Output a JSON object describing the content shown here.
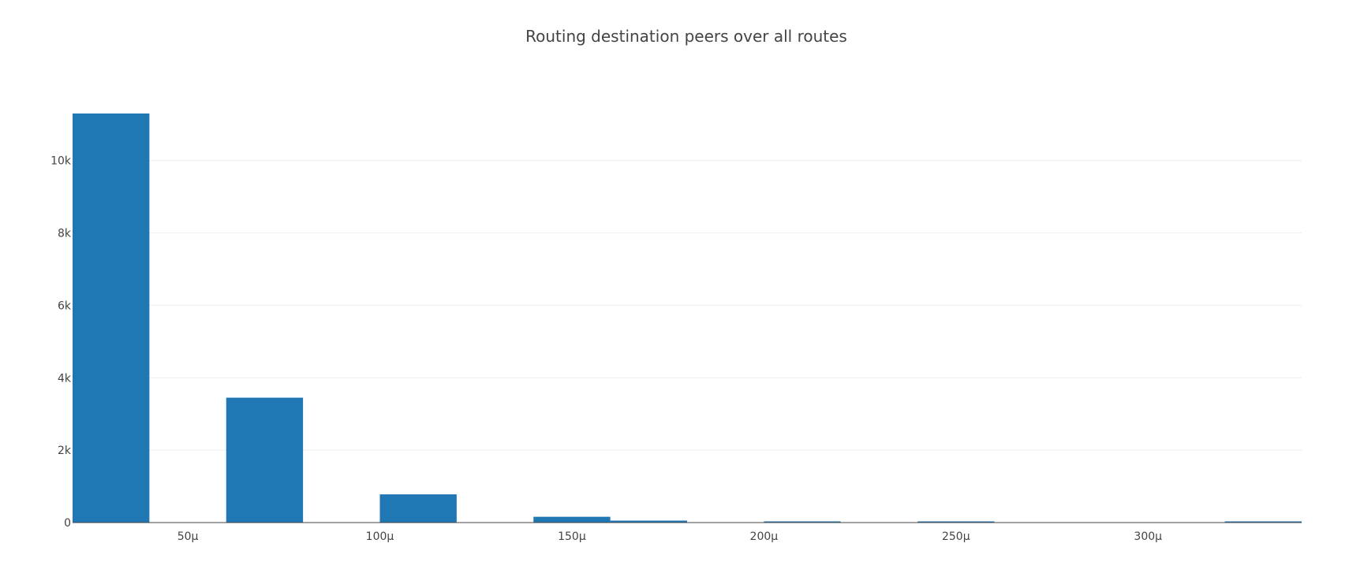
{
  "chart_data": {
    "type": "bar",
    "title": "Routing destination peers over all routes",
    "xlabel": "",
    "ylabel": "",
    "bins": [
      {
        "x0": 0,
        "x1": 20,
        "count": 11300
      },
      {
        "x0": 40,
        "x1": 60,
        "count": 3450
      },
      {
        "x0": 80,
        "x1": 100,
        "count": 780
      },
      {
        "x0": 120,
        "x1": 140,
        "count": 160
      },
      {
        "x0": 140,
        "x1": 160,
        "count": 55
      },
      {
        "x0": 180,
        "x1": 200,
        "count": 20
      },
      {
        "x0": 220,
        "x1": 240,
        "count": 20
      },
      {
        "x0": 300,
        "x1": 320,
        "count": 20
      }
    ],
    "xlim": [
      0,
      320
    ],
    "ylim": [
      0,
      11300
    ],
    "x_ticks": [
      {
        "value": 30,
        "label": "50μ"
      },
      {
        "value": 80,
        "label": "100μ"
      },
      {
        "value": 130,
        "label": "150μ"
      },
      {
        "value": 180,
        "label": "200μ"
      },
      {
        "value": 230,
        "label": "250μ"
      },
      {
        "value": 280,
        "label": "300μ"
      }
    ],
    "y_ticks": [
      {
        "value": 0,
        "label": "0"
      },
      {
        "value": 2000,
        "label": "2k"
      },
      {
        "value": 4000,
        "label": "4k"
      },
      {
        "value": 6000,
        "label": "6k"
      },
      {
        "value": 8000,
        "label": "8k"
      },
      {
        "value": 10000,
        "label": "10k"
      }
    ],
    "grid": true,
    "legend": "none",
    "bar_color": "#1f77b4"
  }
}
